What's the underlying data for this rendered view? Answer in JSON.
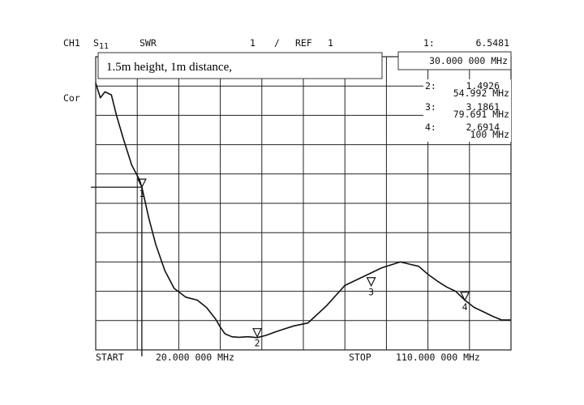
{
  "header": {
    "channel": "CH1",
    "param_main": "S",
    "param_sub": "11",
    "format": "SWR",
    "scale": "1",
    "scale_sep": "/",
    "ref": "REF",
    "ref_value": "1",
    "side_label": "Cor"
  },
  "note": {
    "text": "1.5m height, 1m distance,"
  },
  "markers_readout": [
    {
      "index": "1:",
      "value": "6.5481",
      "freq": "30.000 000 MHz"
    },
    {
      "index": "2:",
      "value": "1.4926",
      "freq": "54.992 MHz"
    },
    {
      "index": "3:",
      "value": "3.1861",
      "freq": "79.691 MHz"
    },
    {
      "index": "4:",
      "value": "2.6914",
      "freq": "100 MHz"
    }
  ],
  "footer": {
    "start_label": "START",
    "start_value": "20.000 000 MHz",
    "stop_label": "STOP",
    "stop_value": "110.000 000 MHz"
  },
  "colors": {
    "ink": "#111111",
    "background": "#ffffff"
  },
  "chart_data": {
    "type": "line",
    "title": "",
    "xlabel": "",
    "ylabel": "",
    "xlim": [
      20,
      110
    ],
    "ylim": [
      1,
      11
    ],
    "grid": true,
    "grid_divisions": {
      "x": 10,
      "y": 10
    },
    "series": [
      {
        "x": [
          20.0,
          21.0,
          22.0,
          23.4,
          24.5,
          26.0,
          27.8,
          29.5,
          30.0,
          31.5,
          33.0,
          35.0,
          37.0,
          39.5,
          42.0,
          44.0,
          46.0,
          47.0,
          48.0,
          49.5,
          51.0,
          53.0,
          55.0,
          57.0,
          59.0,
          61.0,
          63.0,
          66.0,
          70.0,
          74.0,
          78.0,
          82.0,
          86.0,
          90.0,
          92.0,
          94.0,
          96.0,
          98.0,
          100.0,
          102.0,
          104.0,
          106.0,
          108.0,
          110.0
        ],
        "y": [
          10.1,
          9.6,
          9.8,
          9.7,
          9.0,
          8.2,
          7.3,
          6.8,
          6.55,
          5.5,
          4.6,
          3.7,
          3.1,
          2.8,
          2.7,
          2.45,
          2.05,
          1.78,
          1.55,
          1.45,
          1.43,
          1.45,
          1.42,
          1.5,
          1.62,
          1.72,
          1.82,
          1.92,
          2.5,
          3.2,
          3.5,
          3.8,
          4.0,
          3.85,
          3.58,
          3.35,
          3.15,
          3.0,
          2.7,
          2.45,
          2.3,
          2.15,
          2.02,
          2.02
        ]
      }
    ],
    "markers": [
      {
        "label": "1",
        "x": 30.0,
        "y": 6.55
      },
      {
        "label": "2",
        "x": 55.0,
        "y": 1.45
      },
      {
        "label": "3",
        "x": 79.7,
        "y": 3.19
      },
      {
        "label": "4",
        "x": 100.0,
        "y": 2.69
      }
    ]
  }
}
